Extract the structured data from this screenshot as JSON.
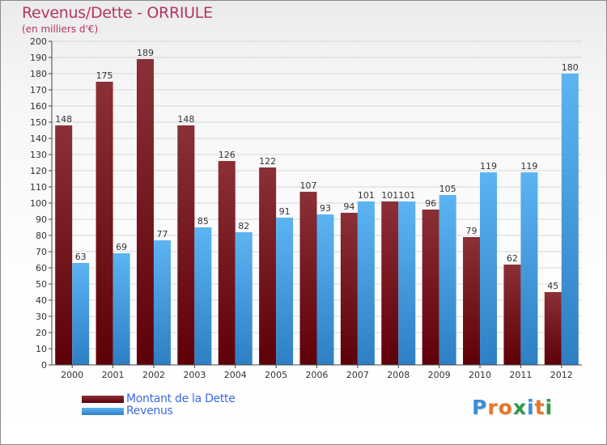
{
  "chart_data": {
    "type": "bar",
    "title": "Revenus/Dette - ORRIULE",
    "subtitle": "(en milliers d'€)",
    "categories": [
      "2000",
      "2001",
      "2002",
      "2003",
      "2004",
      "2005",
      "2006",
      "2007",
      "2008",
      "2009",
      "2010",
      "2011",
      "2012"
    ],
    "series": [
      {
        "name": "Montant de la Dette",
        "color": "#6b1218",
        "values": [
          148,
          175,
          189,
          148,
          126,
          122,
          107,
          94,
          101,
          96,
          79,
          62,
          45
        ]
      },
      {
        "name": "Revenus",
        "color": "#4aa3e6",
        "values": [
          63,
          69,
          77,
          85,
          82,
          91,
          93,
          101,
          101,
          105,
          119,
          119,
          180
        ]
      }
    ],
    "ylim": [
      0,
      200
    ],
    "ytick_step": 10,
    "grid": true,
    "legend_position": "bottom-left",
    "data_labels": true
  },
  "logo": {
    "text": "Proxiti",
    "letter_colors": [
      "#3a8fd8",
      "#e8762a",
      "#e8762a",
      "#2e9a4a",
      "#3a8fd8",
      "#e8762a",
      "#2e9a4a"
    ]
  }
}
